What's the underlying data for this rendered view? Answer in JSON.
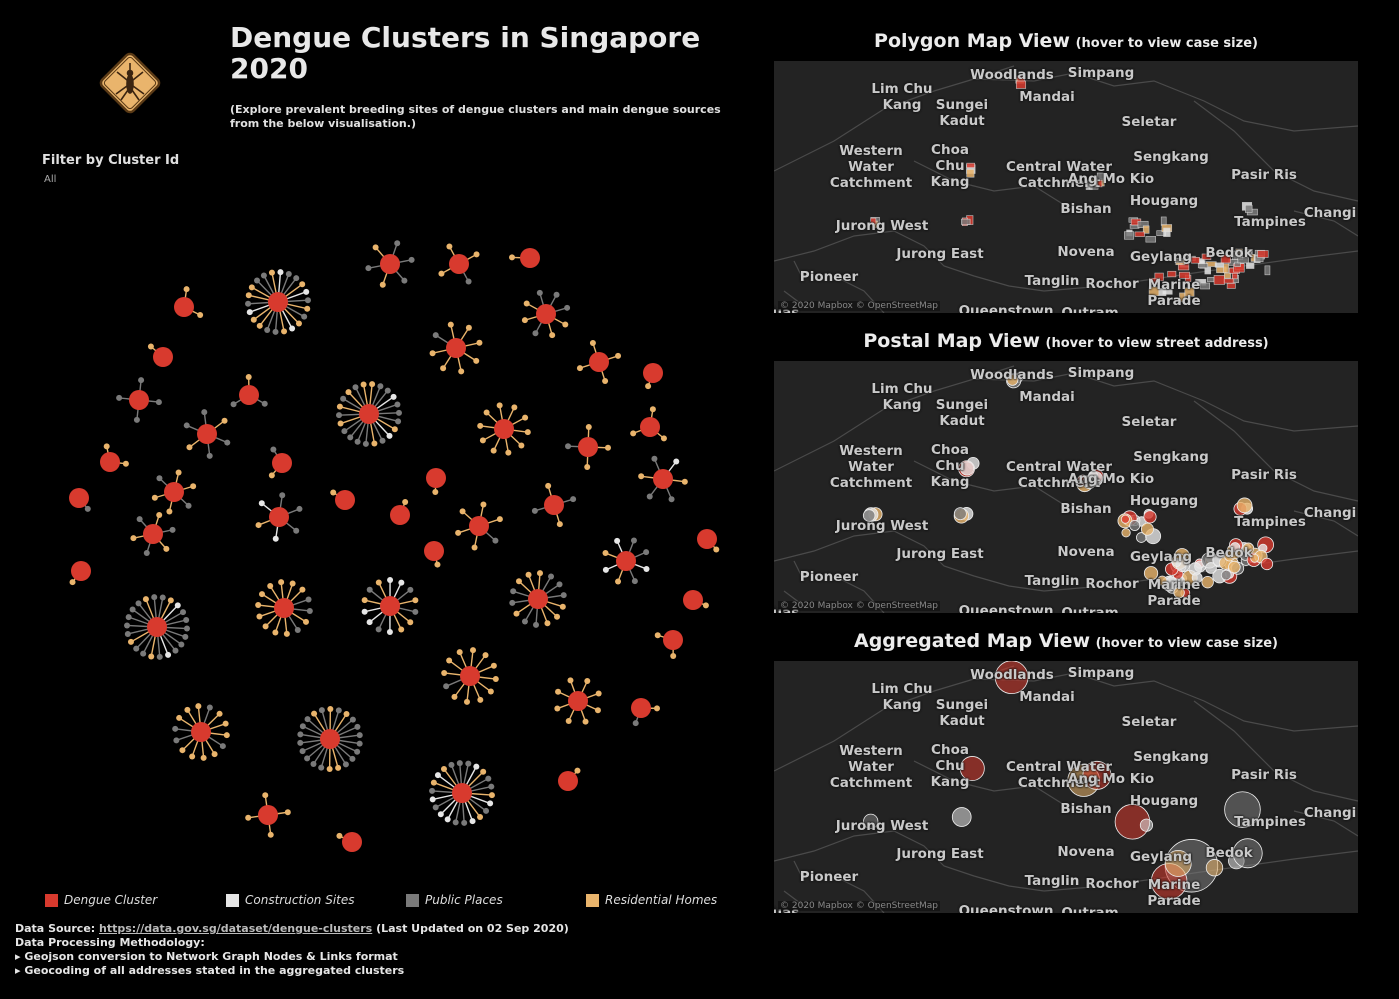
{
  "header": {
    "title": "Dengue Clusters in Singapore 2020",
    "subtitle": "(Explore prevalent breeding sites of dengue clusters and main dengue sources from the below visualisation.)"
  },
  "filter": {
    "label": "Filter by Cluster Id",
    "value": "All"
  },
  "legend": [
    {
      "label": "Dengue Cluster",
      "color": "#d83a2e"
    },
    {
      "label": "Construction Sites",
      "color": "#e6e6e6"
    },
    {
      "label": "Public Places",
      "color": "#7a7a7a"
    },
    {
      "label": "Residential Homes",
      "color": "#e9b46c"
    }
  ],
  "footer": {
    "source_label": "Data Source:",
    "source_link": "https://data.gov.sg/dataset/dengue-clusters",
    "source_updated": "(Last Updated on 02 Sep 2020)",
    "methodology_label": "Data Processing Methodology:",
    "steps": [
      "▸ Geojson conversion to Network Graph Nodes & Links format",
      "▸ Geocoding of all addresses stated in the aggregated clusters"
    ]
  },
  "maps": [
    {
      "title": "Polygon Map View",
      "hint": "(hover to view case size)"
    },
    {
      "title": "Postal Map View",
      "hint": "(hover to view street address)"
    },
    {
      "title": "Aggregated Map View",
      "hint": "(hover to view case size)"
    }
  ],
  "attribution": "© 2020 Mapbox © OpenStreetMap",
  "places": [
    "Lim Chu Kang",
    "Woodlands",
    "Simpang",
    "Mandai",
    "Sungei Kadut",
    "Seletar",
    "Western Water Catchment",
    "Choa Chu Kang",
    "Central Water Catchment",
    "Sengkang",
    "Pasir Ris",
    "Hougang",
    "Bishan",
    "Tampines",
    "Changi",
    "Jurong West",
    "Jurong East",
    "Novena",
    "Geylang",
    "Bedok",
    "Pioneer",
    "Tanglin",
    "Rochor",
    "Marine Parade",
    "Queenstown",
    "Ang Mo Kio",
    "Outram",
    "Tuas"
  ],
  "colors": {
    "cluster": "#d83a2e",
    "construction": "#e6e6e6",
    "public": "#7a7a7a",
    "residential": "#e9b46c",
    "map_bg": "#232323"
  }
}
